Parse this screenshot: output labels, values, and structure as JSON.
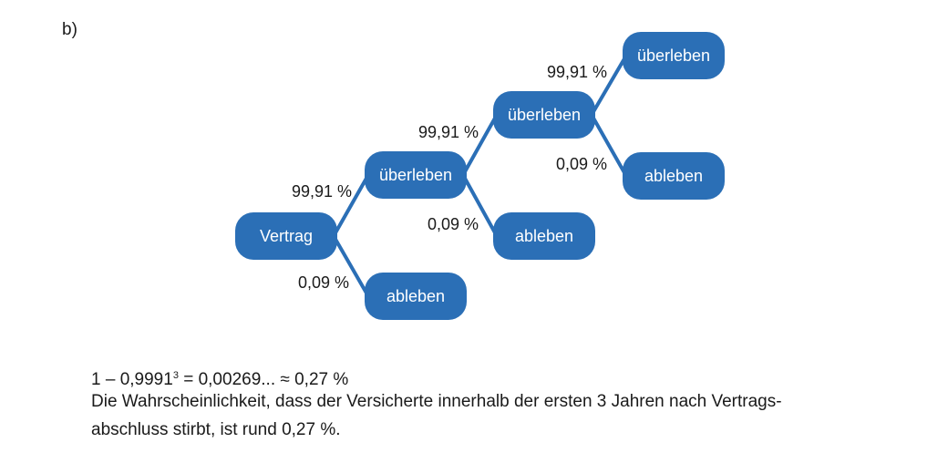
{
  "part_label": "b)",
  "tree": {
    "nodes": [
      {
        "id": "root",
        "label": "Vertrag"
      },
      {
        "id": "s1",
        "label": "überleben"
      },
      {
        "id": "d1",
        "label": "ableben"
      },
      {
        "id": "s2",
        "label": "überleben"
      },
      {
        "id": "d2",
        "label": "ableben"
      },
      {
        "id": "s3",
        "label": "überleben"
      },
      {
        "id": "d3",
        "label": "ableben"
      }
    ],
    "edges": [
      {
        "from": "root",
        "to": "s1",
        "prob": "99,91 %"
      },
      {
        "from": "root",
        "to": "d1",
        "prob": "0,09 %"
      },
      {
        "from": "s1",
        "to": "s2",
        "prob": "99,91 %"
      },
      {
        "from": "s1",
        "to": "d2",
        "prob": "0,09 %"
      },
      {
        "from": "s2",
        "to": "s3",
        "prob": "99,91 %"
      },
      {
        "from": "s2",
        "to": "d3",
        "prob": "0,09 %"
      }
    ]
  },
  "calculation": {
    "lhs_prefix": "1 – 0,9991",
    "exponent": "3",
    "rhs": " = 0,00269... ≈ 0,27 %"
  },
  "explanation": {
    "line1": "Die Wahrscheinlichkeit, dass der Versicherte innerhalb der ersten 3 Jahren nach Vertrags-",
    "line2": "abschluss stirbt, ist rund 0,27 %."
  }
}
